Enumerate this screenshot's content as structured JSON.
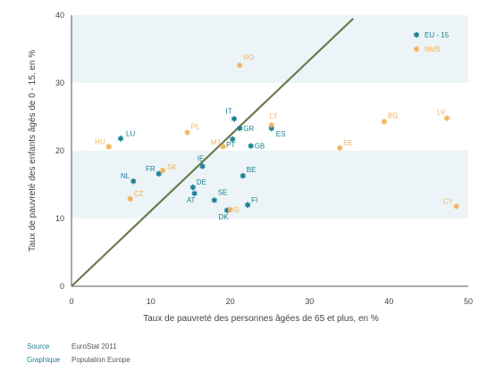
{
  "colors": {
    "eu15": "#1a8094",
    "nms": "#f0b25a",
    "band": "#edf4f7",
    "diagonal": "#6b7b4e",
    "axis_text": "#444444"
  },
  "chart_data": {
    "type": "scatter",
    "xlabel": "Taux de pauvreté des personnes âgées de 65 et plus, en %",
    "ylabel": "Taux de pauvreté des enfants âgés de  0 - 15, en %",
    "xlim": [
      0,
      50
    ],
    "ylim": [
      0,
      40
    ],
    "xticks": [
      "0",
      "10",
      "20",
      "30",
      "40",
      "50"
    ],
    "yticks": [
      "0",
      "10",
      "20",
      "30",
      "40"
    ],
    "grid": "horizontal alternating bands",
    "legend_position": "top-right",
    "reference_line": {
      "x": [
        0,
        35.5
      ],
      "y": [
        0,
        39.5
      ]
    },
    "series": [
      {
        "name": "EU - 15",
        "color_key": "eu15",
        "points": [
          {
            "label": "LU",
            "x": 6.2,
            "y": 21.8
          },
          {
            "label": "NL",
            "x": 7.8,
            "y": 15.5
          },
          {
            "label": "FR",
            "x": 11.0,
            "y": 16.6
          },
          {
            "label": "IE",
            "x": 16.5,
            "y": 17.7
          },
          {
            "label": "DE",
            "x": 15.3,
            "y": 14.6
          },
          {
            "label": "AT",
            "x": 15.5,
            "y": 13.7
          },
          {
            "label": "SE",
            "x": 18.0,
            "y": 12.7
          },
          {
            "label": "DK",
            "x": 19.6,
            "y": 11.2
          },
          {
            "label": "FI",
            "x": 22.2,
            "y": 12.0
          },
          {
            "label": "BE",
            "x": 21.6,
            "y": 16.3
          },
          {
            "label": "IT",
            "x": 20.5,
            "y": 24.7
          },
          {
            "label": "GR",
            "x": 21.2,
            "y": 23.3
          },
          {
            "label": "ES",
            "x": 25.2,
            "y": 23.3
          },
          {
            "label": "PT",
            "x": 20.3,
            "y": 21.7
          },
          {
            "label": "GB",
            "x": 22.6,
            "y": 20.7
          }
        ]
      },
      {
        "name": "NMS",
        "color_key": "nms",
        "points": [
          {
            "label": "RO",
            "x": 21.2,
            "y": 32.6
          },
          {
            "label": "PL",
            "x": 14.6,
            "y": 22.7
          },
          {
            "label": "HU",
            "x": 4.7,
            "y": 20.6
          },
          {
            "label": "SK",
            "x": 11.5,
            "y": 17.1
          },
          {
            "label": "CZ",
            "x": 7.4,
            "y": 12.9
          },
          {
            "label": "MT",
            "x": 19.1,
            "y": 20.6
          },
          {
            "label": "LT",
            "x": 25.2,
            "y": 23.8
          },
          {
            "label": "SI",
            "x": 20.0,
            "y": 11.3
          },
          {
            "label": "EE",
            "x": 33.8,
            "y": 20.4
          },
          {
            "label": "BG",
            "x": 39.4,
            "y": 24.3
          },
          {
            "label": "LV",
            "x": 47.3,
            "y": 24.8
          },
          {
            "label": "CY",
            "x": 48.5,
            "y": 11.8
          }
        ]
      }
    ]
  },
  "footer": {
    "source_key": "Source",
    "source_value": "EuroStat 2011",
    "graphic_key": "Graphique",
    "graphic_value": "Population Europe"
  }
}
